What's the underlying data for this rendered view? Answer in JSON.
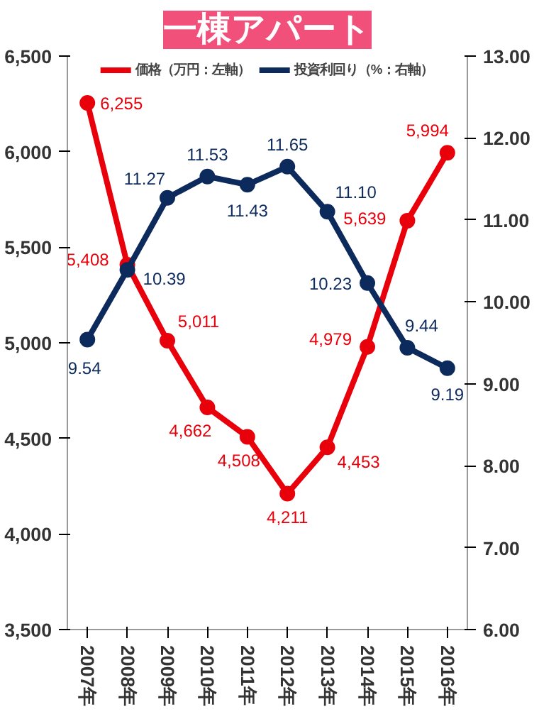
{
  "chart_data": {
    "type": "line",
    "title": "一棟アパート",
    "categories": [
      "2007年",
      "2008年",
      "2009年",
      "2010年",
      "2011年",
      "2012年",
      "2013年",
      "2014年",
      "2015年",
      "2016年"
    ],
    "series": [
      {
        "name": "価格（万円：左軸）",
        "color": "#e8000b",
        "values": [
          6255,
          5408,
          5011,
          4662,
          4508,
          4211,
          4453,
          4979,
          5639,
          5994
        ]
      },
      {
        "name": "投資利回り（%：右軸）",
        "color": "#0d2a5c",
        "axis": "y2",
        "values": [
          9.54,
          10.39,
          11.27,
          11.53,
          11.43,
          11.65,
          11.1,
          10.23,
          9.44,
          9.19
        ]
      }
    ],
    "ylim": [
      3500,
      6500
    ],
    "yticks": [
      {
        "value": 3500,
        "label": "3,500"
      },
      {
        "value": 4000,
        "label": "4,000"
      },
      {
        "value": 4500,
        "label": "4,500"
      },
      {
        "value": 5000,
        "label": "5,000"
      },
      {
        "value": 5500,
        "label": "5,500"
      },
      {
        "value": 6000,
        "label": "6,000"
      },
      {
        "value": 6500,
        "label": "6,500"
      }
    ],
    "y2lim": [
      6,
      13
    ],
    "y2ticks": [
      {
        "value": 6,
        "label": "6.00"
      },
      {
        "value": 7,
        "label": "7.00"
      },
      {
        "value": 8,
        "label": "8.00"
      },
      {
        "value": 9,
        "label": "9.00"
      },
      {
        "value": 10,
        "label": "10.00"
      },
      {
        "value": 11,
        "label": "11.00"
      },
      {
        "value": 12,
        "label": "12.00"
      },
      {
        "value": 13,
        "label": "13.00"
      }
    ],
    "value_labels": [
      [
        "6,255",
        "5,408",
        "5,011",
        "4,662",
        "4,508",
        "4,211",
        "4,453",
        "4,979",
        "5,639",
        "5,994"
      ],
      [
        "9.54",
        "10.39",
        "11.27",
        "11.53",
        "11.43",
        "11.65",
        "11.10",
        "10.23",
        "9.44",
        "9.19"
      ]
    ],
    "marker": "circle",
    "legend": "top",
    "grid": false
  }
}
